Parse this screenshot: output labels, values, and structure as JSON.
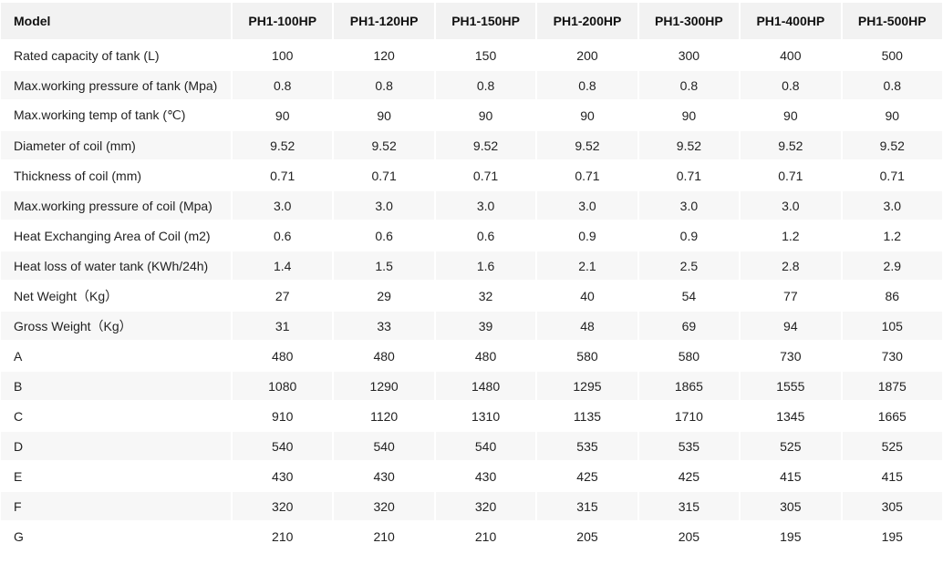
{
  "header": [
    "Model",
    "PH1-100HP",
    "PH1-120HP",
    "PH1-150HP",
    "PH1-200HP",
    "PH1-300HP",
    "PH1-400HP",
    "PH1-500HP"
  ],
  "rows": [
    {
      "label": "Rated capacity of tank (L)",
      "values": [
        "100",
        "120",
        "150",
        "200",
        "300",
        "400",
        "500"
      ]
    },
    {
      "label": "Max.working pressure of tank (Mpa)",
      "values": [
        "0.8",
        "0.8",
        "0.8",
        "0.8",
        "0.8",
        "0.8",
        "0.8"
      ]
    },
    {
      "label": "Max.working temp of tank (℃)",
      "values": [
        "90",
        "90",
        "90",
        "90",
        "90",
        "90",
        "90"
      ]
    },
    {
      "label": "Diameter of coil (mm)",
      "values": [
        "9.52",
        "9.52",
        "9.52",
        "9.52",
        "9.52",
        "9.52",
        "9.52"
      ]
    },
    {
      "label": "Thickness of coil (mm)",
      "values": [
        "0.71",
        "0.71",
        "0.71",
        "0.71",
        "0.71",
        "0.71",
        "0.71"
      ]
    },
    {
      "label": "Max.working pressure of coil (Mpa)",
      "values": [
        "3.0",
        "3.0",
        "3.0",
        "3.0",
        "3.0",
        "3.0",
        "3.0"
      ]
    },
    {
      "label": "Heat Exchanging Area of Coil (m2)",
      "values": [
        "0.6",
        "0.6",
        "0.6",
        "0.9",
        "0.9",
        "1.2",
        "1.2"
      ]
    },
    {
      "label": "Heat loss of water tank (KWh/24h)",
      "values": [
        "1.4",
        "1.5",
        "1.6",
        "2.1",
        "2.5",
        "2.8",
        "2.9"
      ]
    },
    {
      "label": "Net Weight（Kg）",
      "values": [
        "27",
        "29",
        "32",
        "40",
        "54",
        "77",
        "86"
      ]
    },
    {
      "label": "Gross Weight（Kg）",
      "values": [
        "31",
        "33",
        "39",
        "48",
        "69",
        "94",
        "105"
      ]
    },
    {
      "label": "A",
      "values": [
        "480",
        "480",
        "480",
        "580",
        "580",
        "730",
        "730"
      ]
    },
    {
      "label": "B",
      "values": [
        "1080",
        "1290",
        "1480",
        "1295",
        "1865",
        "1555",
        "1875"
      ]
    },
    {
      "label": "C",
      "values": [
        "910",
        "1120",
        "1310",
        "1135",
        "1710",
        "1345",
        "1665"
      ]
    },
    {
      "label": "D",
      "values": [
        "540",
        "540",
        "540",
        "535",
        "535",
        "525",
        "525"
      ]
    },
    {
      "label": "E",
      "values": [
        "430",
        "430",
        "430",
        "425",
        "425",
        "415",
        "415"
      ]
    },
    {
      "label": "F",
      "values": [
        "320",
        "320",
        "320",
        "315",
        "315",
        "305",
        "305"
      ]
    },
    {
      "label": "G",
      "values": [
        "210",
        "210",
        "210",
        "205",
        "205",
        "195",
        "195"
      ]
    }
  ]
}
